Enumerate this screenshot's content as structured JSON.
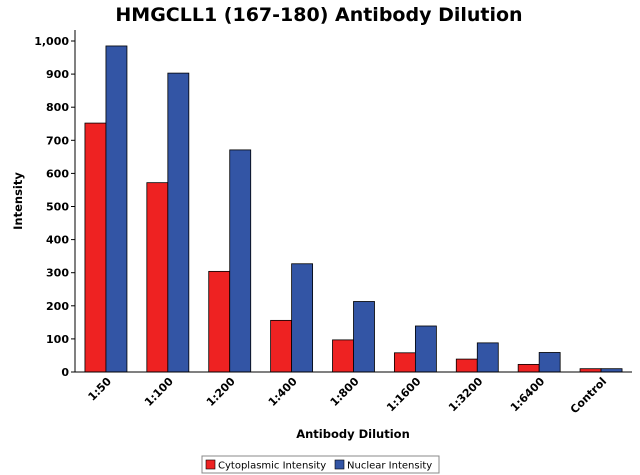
{
  "chart_data": {
    "type": "bar",
    "title": "HMGCLL1 (167-180) Antibody Dilution",
    "xlabel": "Antibody Dilution",
    "ylabel": "Intensity",
    "categories": [
      "1:50",
      "1:100",
      "1:200",
      "1:400",
      "1:800",
      "1:1600",
      "1:3200",
      "1:6400",
      "Control"
    ],
    "series": [
      {
        "name": "Cytoplasmic Intensity",
        "color": "#ee2222",
        "values": [
          752,
          572,
          304,
          156,
          97,
          58,
          39,
          23,
          10
        ]
      },
      {
        "name": "Nuclear Intensity",
        "color": "#3355a5",
        "values": [
          985,
          903,
          671,
          327,
          213,
          139,
          88,
          59,
          10
        ]
      }
    ],
    "ylim": [
      0,
      1000
    ],
    "yticks": [
      "0",
      "100",
      "200",
      "300",
      "400",
      "500",
      "600",
      "700",
      "800",
      "900",
      "1,000"
    ],
    "grid": false,
    "legend": "bottom-center"
  }
}
